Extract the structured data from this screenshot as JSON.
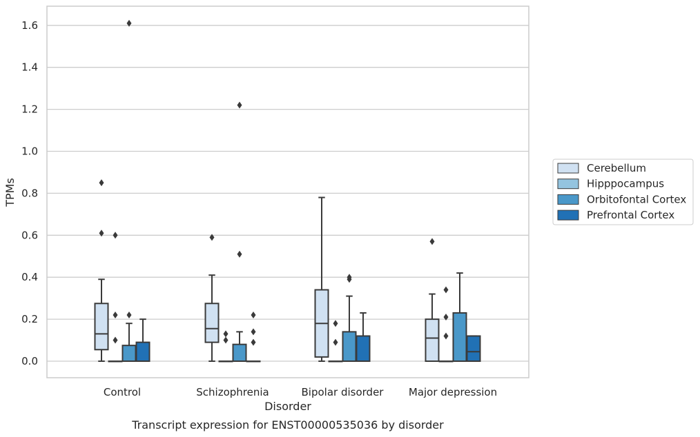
{
  "caption": "Transcript expression for ENST00000535036 by disorder",
  "colors": {
    "Cerebellum": "#d0e1f2",
    "Hipppocampus": "#94c4df",
    "Orbitofontal Cortex": "#4a98c9",
    "Prefrontal Cortex": "#2171b5",
    "line": "#3a3a3a",
    "grid": "#cccccc",
    "frame": "#cccccc"
  },
  "chart_data": {
    "type": "box",
    "xlabel": "Disorder",
    "ylabel": "TPMs",
    "ylim": [
      -0.08,
      1.69
    ],
    "yticks": [
      0.0,
      0.2,
      0.4,
      0.6,
      0.8,
      1.0,
      1.2,
      1.4,
      1.6
    ],
    "ytick_labels": [
      "0.0",
      "0.2",
      "0.4",
      "0.6",
      "0.8",
      "1.0",
      "1.2",
      "1.4",
      "1.6"
    ],
    "grid": "horizontal",
    "legend_position": "right",
    "categories": [
      "Control",
      "Schizophrenia",
      "Bipolar disorder",
      "Major depression"
    ],
    "series": [
      {
        "name": "Cerebellum",
        "boxes": [
          {
            "whislo": 0.0,
            "q1": 0.055,
            "med": 0.13,
            "q3": 0.275,
            "whishi": 0.39,
            "fliers": [
              0.61,
              0.85
            ]
          },
          {
            "whislo": 0.0,
            "q1": 0.09,
            "med": 0.155,
            "q3": 0.275,
            "whishi": 0.41,
            "fliers": [
              0.59
            ]
          },
          {
            "whislo": 0.0,
            "q1": 0.02,
            "med": 0.18,
            "q3": 0.34,
            "whishi": 0.78,
            "fliers": []
          },
          {
            "whislo": 0.0,
            "q1": 0.0,
            "med": 0.11,
            "q3": 0.2,
            "whishi": 0.32,
            "fliers": [
              0.57
            ]
          }
        ]
      },
      {
        "name": "Hipppocampus",
        "boxes": [
          {
            "whislo": 0.0,
            "q1": 0.0,
            "med": 0.0,
            "q3": 0.0,
            "whishi": 0.0,
            "fliers": [
              0.1,
              0.22,
              0.6
            ]
          },
          {
            "whislo": 0.0,
            "q1": 0.0,
            "med": 0.0,
            "q3": 0.0,
            "whishi": 0.0,
            "fliers": [
              0.1,
              0.13
            ]
          },
          {
            "whislo": 0.0,
            "q1": 0.0,
            "med": 0.0,
            "q3": 0.0,
            "whishi": 0.0,
            "fliers": [
              0.09,
              0.18
            ]
          },
          {
            "whislo": 0.0,
            "q1": 0.0,
            "med": 0.0,
            "q3": 0.0,
            "whishi": 0.0,
            "fliers": [
              0.12,
              0.21,
              0.34
            ]
          }
        ]
      },
      {
        "name": "Orbitofontal Cortex",
        "boxes": [
          {
            "whislo": 0.0,
            "q1": 0.0,
            "med": 0.0,
            "q3": 0.075,
            "whishi": 0.18,
            "fliers": [
              0.22,
              1.61
            ]
          },
          {
            "whislo": 0.0,
            "q1": 0.0,
            "med": 0.0,
            "q3": 0.08,
            "whishi": 0.14,
            "fliers": [
              0.51,
              1.22
            ]
          },
          {
            "whislo": 0.0,
            "q1": 0.0,
            "med": 0.0,
            "q3": 0.14,
            "whishi": 0.31,
            "fliers": [
              0.39,
              0.4
            ]
          },
          {
            "whislo": 0.0,
            "q1": 0.0,
            "med": 0.0,
            "q3": 0.23,
            "whishi": 0.42,
            "fliers": []
          }
        ]
      },
      {
        "name": "Prefrontal Cortex",
        "boxes": [
          {
            "whislo": 0.0,
            "q1": 0.0,
            "med": 0.0,
            "q3": 0.09,
            "whishi": 0.2,
            "fliers": []
          },
          {
            "whislo": 0.0,
            "q1": 0.0,
            "med": 0.0,
            "q3": 0.0,
            "whishi": 0.0,
            "fliers": [
              0.09,
              0.14,
              0.22
            ]
          },
          {
            "whislo": 0.0,
            "q1": 0.0,
            "med": 0.0,
            "q3": 0.12,
            "whishi": 0.23,
            "fliers": []
          },
          {
            "whislo": 0.0,
            "q1": 0.0,
            "med": 0.045,
            "q3": 0.12,
            "whishi": 0.12,
            "fliers": []
          }
        ]
      }
    ]
  }
}
